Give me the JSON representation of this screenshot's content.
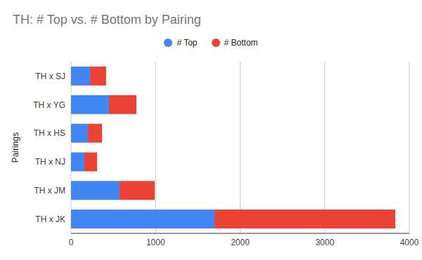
{
  "chart_data": {
    "type": "bar",
    "title": "TH: # Top vs. # Bottom by Pairing",
    "orientation": "horizontal",
    "stacked": true,
    "ylabel": "Pairings",
    "categories": [
      "TH x SJ",
      "TH x YG",
      "TH x HS",
      "TH x NJ",
      "TH x JM",
      "TH x JK"
    ],
    "series": [
      {
        "name": "# Top",
        "color": "#4285f4",
        "values": [
          225,
          449,
          200,
          158,
          574,
          1697
        ]
      },
      {
        "name": "# Bottom",
        "color": "#ea4335",
        "values": [
          190,
          324,
          166,
          150,
          416,
          2137
        ]
      }
    ],
    "xlim": [
      0,
      4000
    ],
    "xticks": [
      0,
      1000,
      2000,
      3000,
      4000
    ],
    "grid": true,
    "legend": "top"
  }
}
